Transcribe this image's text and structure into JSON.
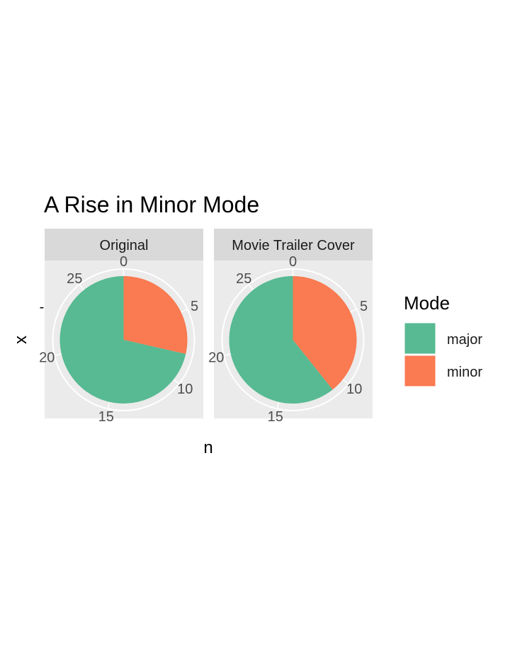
{
  "chart_data": {
    "type": "pie",
    "title": "A Rise in Minor Mode",
    "xlabel": "n",
    "ylabel": "x",
    "y_tick_label": "-",
    "theta_range": [
      0,
      28
    ],
    "theta_ticks": [
      "0",
      "5",
      "10",
      "15",
      "20",
      "25"
    ],
    "legend": {
      "title": "Mode",
      "position": "right",
      "entries": [
        "major",
        "minor"
      ]
    },
    "colors": {
      "major": "#57BA92",
      "minor": "#FA7A51"
    },
    "panels": [
      {
        "label": "Original",
        "values": {
          "minor": 8,
          "major": 20
        }
      },
      {
        "label": "Movie Trailer Cover",
        "values": {
          "minor": 11,
          "major": 17
        }
      }
    ]
  }
}
